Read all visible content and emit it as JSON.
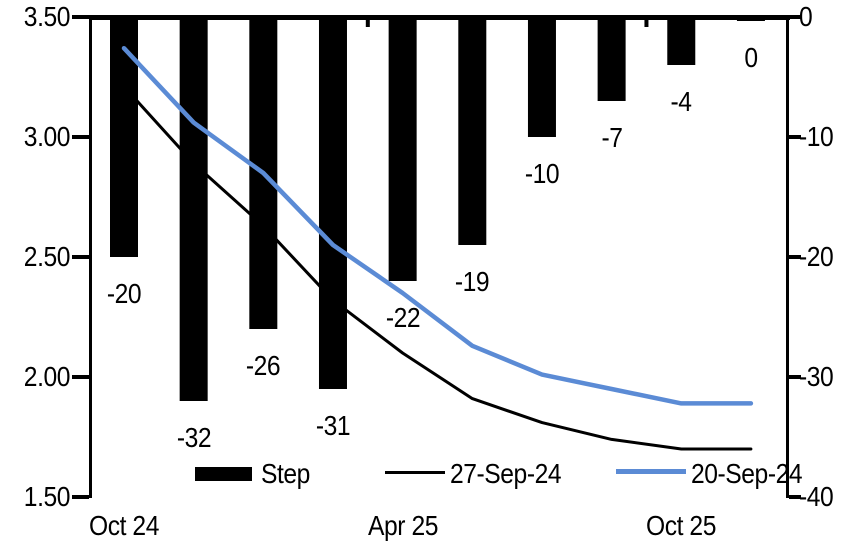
{
  "chart_data": {
    "type": "bar",
    "subtype": "combo-bar-line",
    "title": "",
    "left_axis": {
      "labels": [
        "3.50",
        "3.00",
        "2.50",
        "2.00",
        "1.50"
      ],
      "max": 3.5,
      "min": 1.5
    },
    "right_axis": {
      "labels": [
        "0",
        "-10",
        "-20",
        "-30",
        "-40"
      ],
      "max": 0,
      "min": -40
    },
    "x_axis": {
      "labels": [
        {
          "text": "Oct 24",
          "meeting_index": 0
        },
        {
          "text": "Apr 25",
          "meeting_index": 4
        },
        {
          "text": "Oct 25",
          "meeting_index": 8
        }
      ],
      "top_tick_boundaries": [
        4,
        8
      ]
    },
    "bar_series": {
      "name": "Step",
      "axis": "right",
      "color": "#000000",
      "values": [
        -20,
        -32,
        -26,
        -31,
        -22,
        -19,
        -10,
        -7,
        -4,
        0
      ],
      "data_labels": [
        "-20",
        "-32",
        "-26",
        "-31",
        "-22",
        "-19",
        "-10",
        "-7",
        "-4",
        "0"
      ]
    },
    "line_series": [
      {
        "name": "27-Sep-24",
        "axis": "left",
        "color": "#000000",
        "stroke_width": 3,
        "values": [
          3.21,
          2.89,
          2.63,
          2.32,
          2.1,
          1.91,
          1.81,
          1.74,
          1.7,
          1.7
        ]
      },
      {
        "name": "20-Sep-24",
        "axis": "left",
        "color": "#5B8BD5",
        "stroke_width": 4.5,
        "values": [
          3.37,
          3.06,
          2.85,
          2.55,
          2.35,
          2.13,
          2.01,
          1.95,
          1.89,
          1.89
        ]
      }
    ],
    "legend": {
      "position": "bottom",
      "items": [
        {
          "label": "Step",
          "type": "bar",
          "color": "#000000"
        },
        {
          "label": "27-Sep-24",
          "type": "line",
          "color": "#000000"
        },
        {
          "label": "20-Sep-24",
          "type": "line",
          "color": "#5B8BD5"
        }
      ]
    },
    "grid": "off",
    "background": "#ffffff"
  }
}
